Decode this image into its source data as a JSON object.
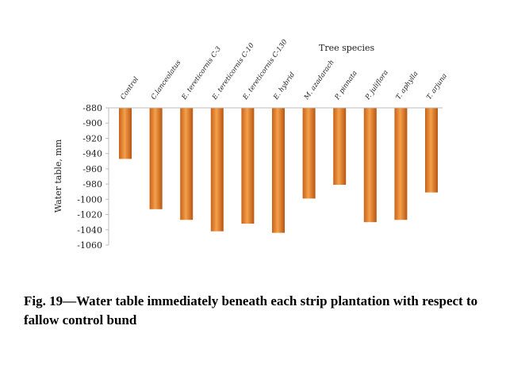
{
  "chart_data": {
    "type": "bar",
    "title": "",
    "legend_title": "Tree species",
    "ylabel": "Water table, mm",
    "xlabel": "",
    "categories": [
      "Control",
      "C.lanceolatus",
      "E. tereticornis C-3",
      "E. tereticornis C-10",
      "E. tereticornis C-130",
      "E. hybrid",
      "M. azadarach",
      "P. pinnata",
      "P. juliflora",
      "T. aphylla",
      "T. arjuna"
    ],
    "values": [
      -947,
      -1013,
      -1027,
      -1042,
      -1032,
      -1044,
      -999,
      -981,
      -1030,
      -1027,
      -991
    ],
    "ylim": [
      -1060,
      -880
    ],
    "yticks": [
      -880,
      -900,
      -920,
      -940,
      -960,
      -980,
      -1000,
      -1020,
      -1040,
      -1060
    ],
    "x_axis_position": "top",
    "grid": false,
    "bar_color": "#e07a1f"
  },
  "caption": "Fig. 19—Water table immediately beneath each strip plantation with respect to fallow control bund"
}
